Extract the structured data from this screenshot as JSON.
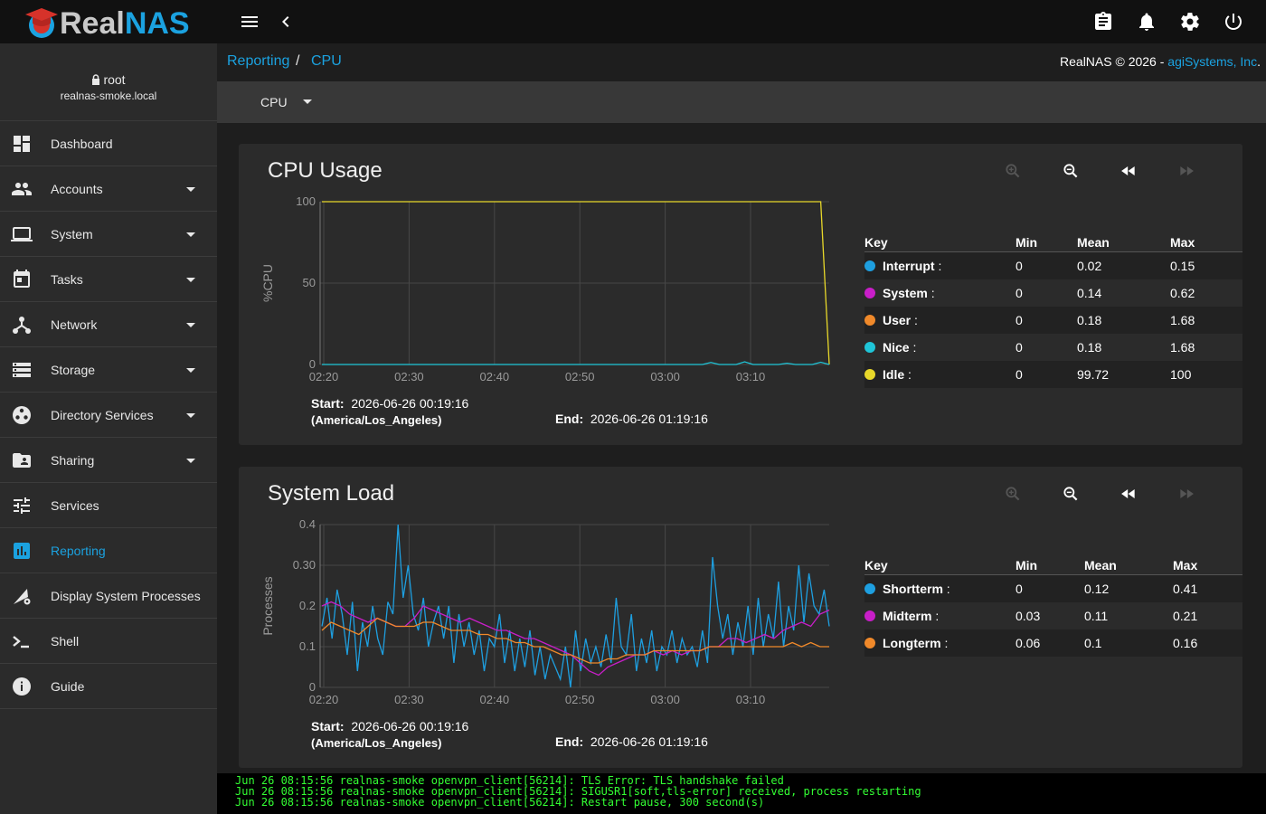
{
  "app": {
    "logo_part1": "Real",
    "logo_part2": "NAS"
  },
  "header": {
    "icons": [
      "menu-icon",
      "back-chevron-icon",
      "clipboard-icon",
      "bell-icon",
      "gear-icon",
      "power-icon"
    ]
  },
  "user": {
    "name": "root",
    "host": "realnas-smoke.local"
  },
  "sidebar": {
    "items": [
      {
        "label": "Dashboard",
        "icon": "dashboard-icon",
        "has_caret": false
      },
      {
        "label": "Accounts",
        "icon": "people-icon",
        "has_caret": true
      },
      {
        "label": "System",
        "icon": "laptop-icon",
        "has_caret": true
      },
      {
        "label": "Tasks",
        "icon": "calendar-icon",
        "has_caret": true
      },
      {
        "label": "Network",
        "icon": "network-icon",
        "has_caret": true
      },
      {
        "label": "Storage",
        "icon": "storage-icon",
        "has_caret": true
      },
      {
        "label": "Directory Services",
        "icon": "directory-icon",
        "has_caret": true
      },
      {
        "label": "Sharing",
        "icon": "share-folder-icon",
        "has_caret": true
      },
      {
        "label": "Services",
        "icon": "tune-icon",
        "has_caret": false
      },
      {
        "label": "Reporting",
        "icon": "bar-chart-icon",
        "has_caret": false,
        "active": true
      },
      {
        "label": "Display System Processes",
        "icon": "processes-icon",
        "has_caret": false
      },
      {
        "label": "Shell",
        "icon": "terminal-icon",
        "has_caret": false
      },
      {
        "label": "Guide",
        "icon": "info-icon",
        "has_caret": false
      }
    ]
  },
  "breadcrumb": {
    "items": [
      "Reporting",
      "CPU"
    ],
    "separator": "/"
  },
  "copyright": {
    "text": "RealNAS © 2026 - ",
    "company": "agiSystems, Inc",
    "suffix": "."
  },
  "selector": {
    "value": "CPU"
  },
  "colors": {
    "accent": "#1ba2e0",
    "blue": "#1e9fe0",
    "magenta": "#c81ec8",
    "orange": "#f0892a",
    "cyan": "#1fc5d8",
    "yellow": "#e8d82a",
    "console_green": "#33ff33"
  },
  "cards": [
    {
      "title": "CPU Usage",
      "start_label": "Start:",
      "start": "2026-06-26 00:19:16",
      "timezone": "(America/Los_Angeles)",
      "end_label": "End:",
      "end": "2026-06-26 01:19:16",
      "legend": {
        "headers": [
          "Key",
          "Min",
          "Mean",
          "Max"
        ],
        "rows": [
          {
            "name": "Interrupt",
            "min": "0",
            "mean": "0.02",
            "max": "0.15",
            "color": "#1e9fe0"
          },
          {
            "name": "System",
            "min": "0",
            "mean": "0.14",
            "max": "0.62",
            "color": "#c81ec8"
          },
          {
            "name": "User",
            "min": "0",
            "mean": "0.18",
            "max": "1.68",
            "color": "#f0892a"
          },
          {
            "name": "Nice",
            "min": "0",
            "mean": "0.18",
            "max": "1.68",
            "color": "#1fc5d8"
          },
          {
            "name": "Idle",
            "min": "0",
            "mean": "99.72",
            "max": "100",
            "color": "#e8d82a"
          }
        ]
      }
    },
    {
      "title": "System Load",
      "start_label": "Start:",
      "start": "2026-06-26 00:19:16",
      "timezone": "(America/Los_Angeles)",
      "end_label": "End:",
      "end": "2026-06-26 01:19:16",
      "legend": {
        "headers": [
          "Key",
          "Min",
          "Mean",
          "Max"
        ],
        "rows": [
          {
            "name": "Shortterm",
            "min": "0",
            "mean": "0.12",
            "max": "0.41",
            "color": "#1e9fe0"
          },
          {
            "name": "Midterm",
            "min": "0.03",
            "mean": "0.11",
            "max": "0.21",
            "color": "#c81ec8"
          },
          {
            "name": "Longterm",
            "min": "0.06",
            "mean": "0.1",
            "max": "0.16",
            "color": "#f0892a"
          }
        ]
      }
    }
  ],
  "chart_data": [
    {
      "type": "line",
      "ylabel": "%CPU",
      "x_ticks": [
        "02:20",
        "02:30",
        "02:40",
        "02:50",
        "03:00",
        "03:10"
      ],
      "y_ticks": [
        "100",
        "50",
        "0"
      ],
      "ylim": [
        0,
        100
      ],
      "grid": true,
      "series": [
        {
          "name": "Idle",
          "color": "#e8d82a",
          "values": [
            100,
            100,
            100,
            100,
            100,
            100,
            100,
            100,
            100,
            100,
            100,
            100,
            100,
            100,
            100,
            100,
            100,
            100,
            100,
            100,
            100,
            100,
            100,
            100,
            100,
            100,
            100,
            100,
            100,
            100,
            100,
            100,
            100,
            100,
            100,
            100,
            100,
            100,
            100,
            100,
            100,
            100,
            100,
            100,
            100,
            100,
            100,
            100,
            100,
            100,
            100,
            100,
            100,
            100,
            100,
            100,
            100,
            100,
            100,
            100,
            0
          ]
        },
        {
          "name": "Nice",
          "color": "#1fc5d8",
          "values": [
            0,
            0,
            0,
            0,
            0,
            0,
            0,
            0,
            0,
            0,
            0,
            0,
            0,
            0,
            0,
            0,
            0,
            0,
            0,
            0,
            0,
            0,
            0,
            0,
            0,
            0,
            0,
            0,
            0,
            0,
            0,
            0,
            0,
            0,
            0,
            0,
            0,
            0,
            0,
            0,
            0,
            0,
            0,
            0,
            0,
            0,
            1.2,
            0,
            0,
            0,
            1.68,
            0,
            0,
            0,
            0,
            0.8,
            0,
            0,
            0,
            1.4,
            0
          ]
        }
      ]
    },
    {
      "type": "line",
      "ylabel": "Processes",
      "x_ticks": [
        "02:20",
        "02:30",
        "02:40",
        "02:50",
        "03:00",
        "03:10"
      ],
      "y_ticks": [
        "0.4",
        "0.30",
        "0.2",
        "0.1",
        "0"
      ],
      "ylim": [
        0,
        0.4
      ],
      "grid": true,
      "series": [
        {
          "name": "Shortterm",
          "color": "#1e9fe0",
          "values": [
            0.15,
            0.22,
            0.12,
            0.24,
            0.18,
            0.08,
            0.21,
            0.04,
            0.16,
            0.1,
            0.2,
            0.12,
            0.08,
            0.21,
            0.18,
            0.4,
            0.22,
            0.3,
            0.18,
            0.14,
            0.22,
            0.1,
            0.16,
            0.2,
            0.12,
            0.2,
            0.06,
            0.18,
            0.1,
            0.16,
            0.08,
            0.14,
            0.04,
            0.12,
            0.1,
            0.18,
            0.06,
            0.14,
            0.04,
            0.12,
            0.05,
            0.14,
            0.03,
            0.1,
            0.02,
            0.08,
            0.05,
            0.02,
            0.1,
            0.0,
            0.14,
            0.04,
            0.12,
            0.06,
            0.1,
            0.05,
            0.13,
            0.06,
            0.22,
            0.1,
            0.08,
            0.18,
            0.04,
            0.12,
            0.06,
            0.14,
            0.04,
            0.1,
            0.08,
            0.14,
            0.06,
            0.12,
            0.08,
            0.1,
            0.05,
            0.14,
            0.06,
            0.32,
            0.2,
            0.12,
            0.18,
            0.08,
            0.16,
            0.1,
            0.2,
            0.08,
            0.22,
            0.1,
            0.18,
            0.12,
            0.26,
            0.1,
            0.2,
            0.14,
            0.3,
            0.16,
            0.28,
            0.2,
            0.18,
            0.24,
            0.15
          ]
        },
        {
          "name": "Midterm",
          "color": "#c81ec8",
          "values": [
            0.2,
            0.21,
            0.2,
            0.18,
            0.17,
            0.16,
            0.17,
            0.16,
            0.15,
            0.15,
            0.17,
            0.2,
            0.19,
            0.18,
            0.17,
            0.16,
            0.17,
            0.16,
            0.15,
            0.14,
            0.14,
            0.13,
            0.12,
            0.12,
            0.11,
            0.1,
            0.09,
            0.08,
            0.06,
            0.04,
            0.03,
            0.05,
            0.06,
            0.07,
            0.08,
            0.08,
            0.09,
            0.08,
            0.09,
            0.08,
            0.09,
            0.09,
            0.1,
            0.1,
            0.12,
            0.12,
            0.11,
            0.12,
            0.13,
            0.12,
            0.14,
            0.15,
            0.16,
            0.15,
            0.18,
            0.19
          ]
        },
        {
          "name": "Longterm",
          "color": "#f0892a",
          "values": [
            0.14,
            0.16,
            0.15,
            0.14,
            0.13,
            0.15,
            0.17,
            0.16,
            0.15,
            0.15,
            0.15,
            0.16,
            0.16,
            0.15,
            0.14,
            0.14,
            0.14,
            0.13,
            0.13,
            0.12,
            0.12,
            0.11,
            0.11,
            0.1,
            0.1,
            0.09,
            0.08,
            0.08,
            0.07,
            0.06,
            0.06,
            0.07,
            0.07,
            0.08,
            0.08,
            0.08,
            0.09,
            0.09,
            0.09,
            0.09,
            0.09,
            0.09,
            0.1,
            0.1,
            0.1,
            0.1,
            0.1,
            0.1,
            0.1,
            0.1,
            0.1,
            0.11,
            0.1,
            0.11,
            0.1,
            0.1
          ]
        }
      ]
    }
  ],
  "console": {
    "lines": [
      "Jun 26 08:15:56 realnas-smoke openvpn_client[56214]: TLS Error: TLS handshake failed",
      "Jun 26 08:15:56 realnas-smoke openvpn_client[56214]: SIGUSR1[soft,tls-error] received, process restarting",
      "Jun 26 08:15:56 realnas-smoke openvpn_client[56214]: Restart pause, 300 second(s)"
    ]
  }
}
